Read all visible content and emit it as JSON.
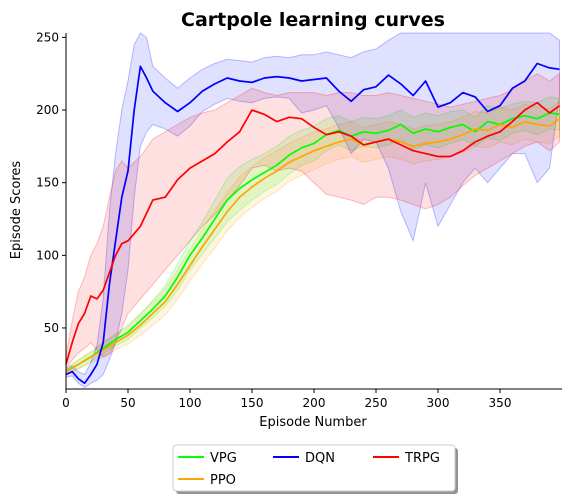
{
  "chart_data": {
    "type": "line",
    "title": "Cartpole learning curves",
    "xlabel": "Episode Number",
    "ylabel": "Episode Scores",
    "xlim": [
      0,
      400
    ],
    "ylim": [
      8,
      253
    ],
    "xticks": [
      0,
      50,
      100,
      150,
      200,
      250,
      300,
      350
    ],
    "yticks": [
      50,
      100,
      150,
      200,
      250
    ],
    "grid": false,
    "legend_position": "bottom-center",
    "series": [
      {
        "name": "VPG",
        "color": "#00ff00",
        "x": [
          0,
          10,
          20,
          30,
          40,
          50,
          60,
          70,
          80,
          90,
          100,
          110,
          120,
          130,
          140,
          150,
          160,
          170,
          180,
          190,
          200,
          210,
          220,
          230,
          240,
          250,
          260,
          270,
          280,
          290,
          300,
          310,
          320,
          330,
          340,
          350,
          360,
          370,
          380,
          390,
          398
        ],
        "y": [
          20,
          25,
          30,
          36,
          42,
          47,
          55,
          63,
          72,
          85,
          100,
          112,
          125,
          138,
          146,
          152,
          157,
          162,
          169,
          174,
          177,
          183,
          186,
          182,
          185,
          184,
          186,
          190,
          184,
          187,
          185,
          188,
          190,
          185,
          192,
          190,
          194,
          196,
          194,
          198,
          197
        ],
        "lower": [
          18,
          22,
          27,
          32,
          38,
          42,
          50,
          57,
          65,
          76,
          90,
          101,
          112,
          123,
          131,
          138,
          144,
          149,
          156,
          162,
          165,
          172,
          176,
          172,
          175,
          174,
          176,
          180,
          173,
          176,
          174,
          177,
          180,
          175,
          181,
          179,
          184,
          186,
          183,
          187,
          186
        ],
        "upper": [
          22,
          28,
          33,
          40,
          46,
          52,
          60,
          69,
          79,
          94,
          110,
          123,
          138,
          153,
          161,
          166,
          170,
          175,
          182,
          186,
          189,
          194,
          196,
          192,
          195,
          194,
          196,
          200,
          195,
          198,
          196,
          199,
          200,
          195,
          203,
          201,
          204,
          206,
          205,
          209,
          208
        ]
      },
      {
        "name": "PPO",
        "color": "#ffa500",
        "x": [
          0,
          10,
          20,
          30,
          40,
          50,
          60,
          70,
          80,
          90,
          100,
          110,
          120,
          130,
          140,
          150,
          160,
          170,
          180,
          190,
          200,
          210,
          220,
          230,
          240,
          250,
          260,
          270,
          280,
          290,
          300,
          310,
          320,
          330,
          340,
          350,
          360,
          370,
          380,
          390,
          398
        ],
        "y": [
          20,
          25,
          30,
          35,
          40,
          45,
          52,
          60,
          68,
          80,
          93,
          106,
          118,
          130,
          140,
          147,
          153,
          158,
          164,
          168,
          172,
          175,
          178,
          180,
          176,
          178,
          180,
          178,
          175,
          177,
          178,
          180,
          183,
          187,
          186,
          190,
          188,
          192,
          190,
          189,
          194
        ],
        "lower": [
          18,
          22,
          26,
          30,
          35,
          39,
          45,
          52,
          59,
          70,
          82,
          94,
          105,
          117,
          126,
          133,
          139,
          144,
          151,
          155,
          159,
          163,
          166,
          168,
          164,
          166,
          168,
          166,
          163,
          165,
          166,
          168,
          171,
          175,
          174,
          178,
          176,
          180,
          178,
          177,
          182
        ],
        "upper": [
          22,
          28,
          34,
          40,
          45,
          51,
          59,
          68,
          77,
          90,
          104,
          118,
          131,
          143,
          154,
          161,
          167,
          172,
          177,
          181,
          185,
          187,
          190,
          192,
          188,
          190,
          192,
          190,
          187,
          189,
          190,
          192,
          195,
          199,
          198,
          202,
          200,
          204,
          202,
          201,
          206
        ]
      },
      {
        "name": "DQN",
        "color": "#0000ff",
        "x": [
          0,
          5,
          10,
          15,
          20,
          25,
          30,
          35,
          40,
          45,
          50,
          55,
          60,
          65,
          70,
          80,
          90,
          100,
          110,
          120,
          130,
          140,
          150,
          160,
          170,
          180,
          190,
          200,
          210,
          220,
          230,
          240,
          250,
          260,
          270,
          280,
          290,
          300,
          310,
          320,
          330,
          340,
          350,
          360,
          370,
          380,
          390,
          398
        ],
        "y": [
          18,
          20,
          15,
          12,
          18,
          25,
          40,
          80,
          110,
          140,
          158,
          200,
          230,
          222,
          213,
          205,
          199,
          205,
          213,
          218,
          222,
          220,
          219,
          222,
          223,
          222,
          220,
          221,
          222,
          213,
          206,
          214,
          216,
          224,
          218,
          210,
          220,
          202,
          205,
          212,
          209,
          199,
          203,
          215,
          220,
          232,
          229,
          228
        ],
        "lower": [
          16,
          17,
          12,
          9,
          12,
          14,
          18,
          28,
          40,
          60,
          90,
          140,
          175,
          185,
          190,
          187,
          182,
          189,
          199,
          204,
          208,
          206,
          205,
          208,
          209,
          208,
          198,
          200,
          203,
          188,
          170,
          180,
          178,
          160,
          130,
          110,
          150,
          120,
          135,
          150,
          160,
          150,
          160,
          170,
          170,
          150,
          160,
          210
        ],
        "upper": [
          21,
          24,
          20,
          18,
          26,
          38,
          70,
          130,
          170,
          200,
          220,
          245,
          253,
          250,
          230,
          222,
          215,
          222,
          228,
          232,
          235,
          234,
          233,
          236,
          237,
          236,
          238,
          238,
          240,
          238,
          236,
          240,
          242,
          248,
          253,
          253,
          253,
          253,
          253,
          253,
          253,
          253,
          253,
          253,
          253,
          253,
          253,
          248
        ]
      },
      {
        "name": "TRPG",
        "color": "#ff0000",
        "x": [
          0,
          5,
          10,
          15,
          20,
          25,
          30,
          35,
          40,
          45,
          50,
          60,
          70,
          80,
          90,
          100,
          110,
          120,
          130,
          140,
          150,
          160,
          170,
          180,
          190,
          200,
          210,
          220,
          230,
          240,
          250,
          260,
          270,
          280,
          290,
          300,
          310,
          320,
          330,
          340,
          350,
          360,
          370,
          380,
          390,
          398
        ],
        "y": [
          25,
          40,
          53,
          60,
          72,
          70,
          76,
          88,
          100,
          108,
          110,
          120,
          138,
          140,
          152,
          160,
          165,
          170,
          178,
          185,
          200,
          197,
          192,
          195,
          194,
          188,
          183,
          185,
          182,
          176,
          178,
          180,
          176,
          172,
          170,
          168,
          168,
          172,
          178,
          182,
          185,
          192,
          200,
          205,
          198,
          203
        ],
        "lower": [
          22,
          28,
          33,
          36,
          40,
          35,
          30,
          32,
          40,
          50,
          60,
          70,
          80,
          90,
          100,
          110,
          120,
          128,
          138,
          148,
          160,
          162,
          158,
          160,
          158,
          150,
          142,
          140,
          138,
          135,
          140,
          140,
          138,
          135,
          132,
          135,
          140,
          148,
          155,
          160,
          165,
          170,
          175,
          178,
          172,
          178
        ],
        "upper": [
          30,
          55,
          75,
          85,
          100,
          108,
          120,
          140,
          158,
          165,
          160,
          168,
          180,
          185,
          190,
          195,
          198,
          200,
          205,
          210,
          215,
          212,
          210,
          212,
          212,
          212,
          210,
          212,
          212,
          210,
          210,
          212,
          210,
          208,
          206,
          204,
          202,
          204,
          206,
          208,
          210,
          214,
          220,
          225,
          220,
          225
        ]
      }
    ]
  }
}
